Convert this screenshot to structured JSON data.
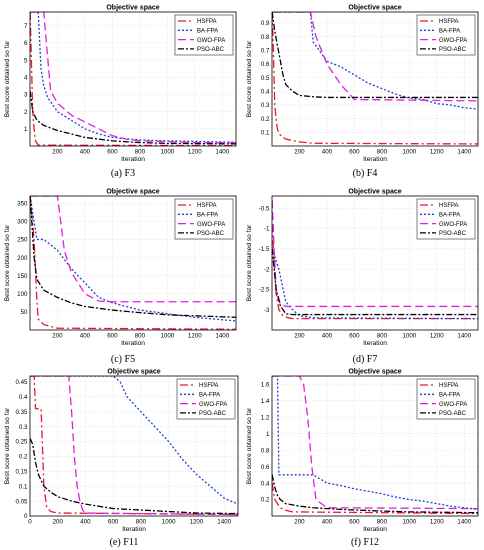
{
  "chart_data": [
    {
      "type": "line",
      "title": "Objective space",
      "xlabel": "Iteration",
      "ylabel": "Best score obtained so far",
      "caption": "(a) F3",
      "xlim": [
        0,
        1500
      ],
      "ylim": [
        0,
        7.8
      ],
      "xticks": [
        200,
        400,
        600,
        800,
        1000,
        1200,
        1400
      ],
      "xtick_labels": [
        "200",
        "400",
        "600",
        "800",
        "1000",
        "1200",
        "1400"
      ],
      "yticks": [
        1,
        2,
        3,
        4,
        5,
        6,
        7
      ],
      "ytick_labels": [
        "1",
        "2",
        "3",
        "4",
        "5",
        "6",
        "7"
      ],
      "grid": true,
      "legend": "top-right",
      "series": [
        {
          "name": "HSFPA",
          "color": "#e8192c",
          "dash": "8,3,2,3",
          "x": [
            1,
            10,
            20,
            30,
            40,
            60,
            1500
          ],
          "y": [
            7.8,
            5,
            2,
            1,
            0.3,
            0.05,
            0.02
          ]
        },
        {
          "name": "BA-FPA",
          "color": "#1f3fd6",
          "dash": "2,2",
          "x": [
            1,
            60,
            80,
            100,
            130,
            200,
            300,
            400,
            500,
            600,
            800,
            1000,
            1500
          ],
          "y": [
            7.8,
            7.8,
            4.5,
            3.5,
            2.8,
            2,
            1.5,
            1.0,
            0.7,
            0.5,
            0.35,
            0.3,
            0.22
          ]
        },
        {
          "name": "GWO-FPA",
          "color": "#e11fe0",
          "dash": "8,4",
          "x": [
            1,
            100,
            150,
            200,
            300,
            400,
            500,
            600,
            700,
            800,
            1000,
            1200,
            1500
          ],
          "y": [
            7.8,
            7.8,
            3.2,
            2.5,
            1.8,
            1.4,
            1.0,
            0.6,
            0.4,
            0.3,
            0.25,
            0.2,
            0.18
          ]
        },
        {
          "name": "PSO-ABC",
          "color": "#000000",
          "dash": "6,2,2,2",
          "x": [
            1,
            20,
            50,
            100,
            200,
            300,
            400,
            600,
            800,
            1000,
            1500
          ],
          "y": [
            3.2,
            2.0,
            1.5,
            1.2,
            0.9,
            0.7,
            0.5,
            0.3,
            0.2,
            0.15,
            0.12
          ]
        }
      ]
    },
    {
      "type": "line",
      "title": "Objective space",
      "xlabel": "Iteration",
      "ylabel": "Best score obtained so far",
      "caption": "(b) F4",
      "xlim": [
        0,
        1500
      ],
      "ylim": [
        0,
        0.98
      ],
      "xticks": [
        200,
        400,
        600,
        800,
        1000,
        1200,
        1400
      ],
      "xtick_labels": [
        "200",
        "400",
        "600",
        "800",
        "1000",
        "1200",
        "1400"
      ],
      "yticks": [
        0.1,
        0.2,
        0.3,
        0.4,
        0.5,
        0.6,
        0.7,
        0.8,
        0.9
      ],
      "ytick_labels": [
        "0.1",
        "0.2",
        "0.3",
        "0.4",
        "0.5",
        "0.6",
        "0.7",
        "0.8",
        "0.9"
      ],
      "grid": true,
      "legend": "top-right",
      "series": [
        {
          "name": "HSFPA",
          "color": "#e8192c",
          "dash": "8,3,2,3",
          "x": [
            1,
            10,
            20,
            30,
            40,
            60,
            100,
            200,
            300,
            1500
          ],
          "y": [
            0.98,
            0.7,
            0.3,
            0.2,
            0.12,
            0.08,
            0.05,
            0.03,
            0.02,
            0.015
          ]
        },
        {
          "name": "BA-FPA",
          "color": "#1f3fd6",
          "dash": "2,2",
          "x": [
            1,
            280,
            300,
            400,
            500,
            600,
            700,
            800,
            900,
            1000,
            1100,
            1200,
            1300,
            1400,
            1500
          ],
          "y": [
            0.98,
            0.98,
            0.76,
            0.62,
            0.58,
            0.52,
            0.46,
            0.42,
            0.38,
            0.35,
            0.34,
            0.31,
            0.3,
            0.28,
            0.27
          ]
        },
        {
          "name": "GWO-FPA",
          "color": "#e11fe0",
          "dash": "8,4",
          "x": [
            1,
            280,
            320,
            400,
            500,
            600,
            1500
          ],
          "y": [
            0.98,
            0.98,
            0.8,
            0.6,
            0.45,
            0.34,
            0.33
          ]
        },
        {
          "name": "PSO-ABC",
          "color": "#000000",
          "dash": "6,2,2,2",
          "x": [
            1,
            20,
            50,
            80,
            100,
            150,
            200,
            300,
            400,
            1500
          ],
          "y": [
            0.98,
            0.84,
            0.68,
            0.52,
            0.45,
            0.4,
            0.37,
            0.36,
            0.355,
            0.355
          ]
        }
      ]
    },
    {
      "type": "line",
      "title": "Objective space",
      "xlabel": "Iteration",
      "ylabel": "Best score obtained so far",
      "caption": "(c) F5",
      "xlim": [
        0,
        1500
      ],
      "ylim": [
        0,
        370
      ],
      "xticks": [
        200,
        400,
        600,
        800,
        1000,
        1200,
        1400
      ],
      "xtick_labels": [
        "200",
        "400",
        "600",
        "800",
        "1000",
        "1200",
        "1400"
      ],
      "yticks": [
        50,
        100,
        150,
        200,
        250,
        300,
        350
      ],
      "ytick_labels": [
        "50",
        "100",
        "150",
        "200",
        "250",
        "300",
        "350"
      ],
      "grid": true,
      "legend": "top-right",
      "series": [
        {
          "name": "HSFPA",
          "color": "#e8192c",
          "dash": "8,3,2,3",
          "x": [
            1,
            30,
            50,
            60,
            100,
            150,
            200,
            1500
          ],
          "y": [
            370,
            250,
            80,
            30,
            15,
            10,
            5,
            2
          ]
        },
        {
          "name": "BA-FPA",
          "color": "#1f3fd6",
          "dash": "2,2",
          "x": [
            1,
            50,
            100,
            200,
            300,
            400,
            500,
            600,
            700,
            800,
            1000,
            1200,
            1500
          ],
          "y": [
            370,
            250,
            250,
            220,
            170,
            130,
            90,
            75,
            65,
            55,
            45,
            35,
            25
          ]
        },
        {
          "name": "GWO-FPA",
          "color": "#e11fe0",
          "dash": "8,4",
          "x": [
            1,
            200,
            250,
            300,
            400,
            500,
            600,
            1500
          ],
          "y": [
            370,
            370,
            220,
            160,
            100,
            80,
            78,
            78
          ]
        },
        {
          "name": "PSO-ABC",
          "color": "#000000",
          "dash": "6,2,2,2",
          "x": [
            1,
            30,
            50,
            100,
            200,
            300,
            400,
            600,
            800,
            1000,
            1500
          ],
          "y": [
            370,
            200,
            140,
            110,
            90,
            75,
            65,
            55,
            48,
            42,
            35
          ]
        }
      ]
    },
    {
      "type": "line",
      "title": "Objective space",
      "xlabel": "Iteration",
      "ylabel": "Best score obtained so far",
      "caption": "(d) F7",
      "xlim": [
        0,
        1500
      ],
      "ylim": [
        -3.5,
        -0.2
      ],
      "xticks": [
        200,
        400,
        600,
        800,
        1000,
        1200,
        1400
      ],
      "xtick_labels": [
        "200",
        "400",
        "600",
        "800",
        "1000",
        "1200",
        "1400"
      ],
      "yticks": [
        -3,
        -2.5,
        -2,
        -1.5,
        -1,
        -0.5
      ],
      "ytick_labels": [
        "-3",
        "-2.5",
        "-2",
        "-1.5",
        "-1",
        "-0.5"
      ],
      "grid": true,
      "legend": "top-right",
      "series": [
        {
          "name": "HSFPA",
          "color": "#e8192c",
          "dash": "8,3,2,3",
          "x": [
            1,
            15,
            30,
            50,
            80,
            120,
            150,
            1500
          ],
          "y": [
            -0.9,
            -1.8,
            -2.6,
            -3.0,
            -3.15,
            -3.2,
            -3.22,
            -3.22
          ]
        },
        {
          "name": "BA-FPA",
          "color": "#1f3fd6",
          "dash": "2,2",
          "x": [
            1,
            50,
            100,
            150,
            200,
            300,
            1500
          ],
          "y": [
            -1.5,
            -2.0,
            -2.8,
            -3.0,
            -3.15,
            -3.2,
            -3.22
          ]
        },
        {
          "name": "GWO-FPA",
          "color": "#e11fe0",
          "dash": "8,4",
          "x": [
            1,
            15,
            30,
            60,
            100,
            1500
          ],
          "y": [
            -0.3,
            -1.5,
            -2.5,
            -2.85,
            -2.92,
            -2.92
          ]
        },
        {
          "name": "PSO-ABC",
          "color": "#000000",
          "dash": "6,2,2,2",
          "x": [
            1,
            30,
            60,
            100,
            150,
            1500
          ],
          "y": [
            -1.5,
            -2.5,
            -2.9,
            -3.1,
            -3.12,
            -3.12
          ]
        }
      ]
    },
    {
      "type": "line",
      "title": "Objective space",
      "xlabel": "Iteration",
      "ylabel": "Best score obtained so far",
      "caption": "(e) F11",
      "xlim": [
        0,
        1500
      ],
      "ylim": [
        0,
        0.47
      ],
      "xticks": [
        0,
        200,
        400,
        600,
        800,
        1000,
        1200,
        1400
      ],
      "xtick_labels": [
        "0",
        "200",
        "400",
        "600",
        "800",
        "1000",
        "1200",
        "1400"
      ],
      "yticks": [
        0,
        0.05,
        0.1,
        0.15,
        0.2,
        0.25,
        0.3,
        0.35,
        0.4,
        0.45
      ],
      "ytick_labels": [
        "0",
        "0.05",
        "0.1",
        "0.15",
        "0.2",
        "0.25",
        "0.3",
        "0.35",
        "0.4",
        "0.45"
      ],
      "grid": true,
      "legend": "top-right",
      "series": [
        {
          "name": "HSFPA",
          "color": "#e8192c",
          "dash": "8,3,2,3",
          "x": [
            1,
            30,
            40,
            80,
            100,
            120,
            150,
            200,
            1500
          ],
          "y": [
            0.47,
            0.47,
            0.36,
            0.36,
            0.1,
            0.03,
            0.015,
            0.01,
            0.005
          ]
        },
        {
          "name": "BA-FPA",
          "color": "#1f3fd6",
          "dash": "2,2",
          "x": [
            1,
            600,
            650,
            700,
            800,
            900,
            1000,
            1100,
            1200,
            1300,
            1400,
            1500
          ],
          "y": [
            0.47,
            0.47,
            0.45,
            0.4,
            0.35,
            0.3,
            0.25,
            0.19,
            0.14,
            0.1,
            0.06,
            0.04
          ]
        },
        {
          "name": "GWO-FPA",
          "color": "#e11fe0",
          "dash": "8,4",
          "x": [
            1,
            280,
            300,
            320,
            340,
            360,
            380,
            400,
            1500
          ],
          "y": [
            0.47,
            0.47,
            0.35,
            0.2,
            0.1,
            0.05,
            0.02,
            0.01,
            0.005
          ]
        },
        {
          "name": "PSO-ABC",
          "color": "#000000",
          "dash": "6,2,2,2",
          "x": [
            1,
            20,
            40,
            60,
            100,
            150,
            200,
            300,
            400,
            600,
            800,
            1000,
            1200,
            1500
          ],
          "y": [
            0.26,
            0.24,
            0.18,
            0.14,
            0.1,
            0.08,
            0.065,
            0.05,
            0.04,
            0.025,
            0.02,
            0.015,
            0.01,
            0.008
          ]
        }
      ]
    },
    {
      "type": "line",
      "title": "Objective space",
      "xlabel": "Iteration",
      "ylabel": "Best score obtained so far",
      "caption": "(f) F12",
      "xlim": [
        0,
        1500
      ],
      "ylim": [
        0,
        1.7
      ],
      "xticks": [
        200,
        400,
        600,
        800,
        1000,
        1200,
        1400
      ],
      "xtick_labels": [
        "200",
        "400",
        "600",
        "800",
        "1000",
        "1200",
        "1400"
      ],
      "yticks": [
        0.2,
        0.4,
        0.6,
        0.8,
        1,
        1.2,
        1.4,
        1.6
      ],
      "ytick_labels": [
        "0.2",
        "0.4",
        "0.6",
        "0.8",
        "1",
        "1.2",
        "1.4",
        "1.6"
      ],
      "grid": true,
      "legend": "top-right",
      "series": [
        {
          "name": "HSFPA",
          "color": "#e8192c",
          "dash": "8,3,2,3",
          "x": [
            1,
            10,
            20,
            40,
            60,
            100,
            150,
            1500
          ],
          "y": [
            0.4,
            0.3,
            0.2,
            0.15,
            0.1,
            0.07,
            0.05,
            0.03
          ]
        },
        {
          "name": "BA-FPA",
          "color": "#1f3fd6",
          "dash": "2,2",
          "x": [
            1,
            40,
            50,
            300,
            350,
            400,
            500,
            600,
            700,
            800,
            900,
            1000,
            1100,
            1200,
            1300,
            1400,
            1500
          ],
          "y": [
            1.7,
            1.7,
            0.5,
            0.5,
            0.45,
            0.4,
            0.37,
            0.33,
            0.3,
            0.27,
            0.23,
            0.2,
            0.18,
            0.15,
            0.12,
            0.1,
            0.08
          ]
        },
        {
          "name": "GWO-FPA",
          "color": "#e11fe0",
          "dash": "8,4",
          "x": [
            1,
            200,
            230,
            260,
            290,
            320,
            400,
            1500
          ],
          "y": [
            1.7,
            1.7,
            1.6,
            1.2,
            0.6,
            0.2,
            0.1,
            0.09
          ]
        },
        {
          "name": "PSO-ABC",
          "color": "#000000",
          "dash": "6,2,2,2",
          "x": [
            1,
            20,
            40,
            60,
            100,
            200,
            300,
            500,
            800,
            1000,
            1500
          ],
          "y": [
            0.5,
            0.35,
            0.25,
            0.2,
            0.15,
            0.12,
            0.1,
            0.08,
            0.06,
            0.05,
            0.04
          ]
        }
      ]
    }
  ]
}
